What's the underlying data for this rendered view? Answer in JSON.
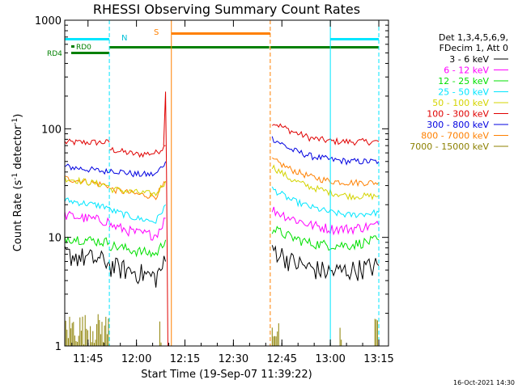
{
  "chart_data": {
    "type": "line",
    "title": "RHESSI Observing Summary Count Rates",
    "xlabel": "Start Time (19-Sep-07 11:39:22)",
    "ylabel_main": "Count Rate (s",
    "ylabel_sup1": "-1",
    "ylabel_mid": " detector",
    "ylabel_sup2": "-1",
    "ylabel_end": ")",
    "x_range_minutes": [
      11.63,
      13.3
    ],
    "y_scale": "log",
    "ylim": [
      1,
      1000
    ],
    "x_ticks": [
      {
        "t": 11.75,
        "label": "11:45"
      },
      {
        "t": 12.0,
        "label": "12:00"
      },
      {
        "t": 12.25,
        "label": "12:15"
      },
      {
        "t": 12.5,
        "label": "12:30"
      },
      {
        "t": 12.75,
        "label": "12:45"
      },
      {
        "t": 13.0,
        "label": "13:00"
      },
      {
        "t": 13.25,
        "label": "13:15"
      }
    ],
    "y_ticks": [
      {
        "v": 1,
        "label": "1"
      },
      {
        "v": 10,
        "label": "10"
      },
      {
        "v": 100,
        "label": "100"
      },
      {
        "v": 1000,
        "label": "1000"
      }
    ],
    "legend": {
      "header1": "Det 1,3,4,5,6,9,",
      "header2": "FDecim 1, Att 0",
      "entries": [
        {
          "label": "3 - 6 keV",
          "color": "#000000"
        },
        {
          "label": "6 - 12 keV",
          "color": "#ff00ff"
        },
        {
          "label": "12 - 25 keV",
          "color": "#00e000"
        },
        {
          "label": "25 - 50 keV",
          "color": "#00e6ff"
        },
        {
          "label": "50 - 100 keV",
          "color": "#d4d400"
        },
        {
          "label": "100 - 300 keV",
          "color": "#e00000"
        },
        {
          "label": "300 - 800 keV",
          "color": "#0000e0"
        },
        {
          "label": "800 - 7000 keV",
          "color": "#ff8000"
        },
        {
          "label": "7000 - 15000 keV",
          "color": "#8c8000"
        }
      ]
    },
    "flags": {
      "rd0_label": "RD0",
      "rd4_label": "RD4",
      "n_label": "N",
      "s_label": "S",
      "night_color": "#00e6ff",
      "saa_color": "#ff8000",
      "rd_color": "#008000",
      "night_intervals": [
        [
          11.63,
          11.86
        ],
        [
          13.0,
          13.25
        ]
      ],
      "saa_interval": [
        12.18,
        12.69
      ],
      "night_boundaries": [
        11.63,
        11.86,
        13.0,
        13.25
      ],
      "saa_boundaries": [
        12.18,
        12.69
      ]
    },
    "series": [
      {
        "color": "#e00000",
        "segments": [
          [
            [
              11.63,
              75
            ],
            [
              11.86,
              75
            ]
          ],
          [
            [
              11.86,
              65
            ],
            [
              12.0,
              58
            ],
            [
              12.1,
              60
            ],
            [
              12.15,
              70
            ]
          ],
          [
            [
              12.7,
              115
            ],
            [
              12.8,
              95
            ],
            [
              12.9,
              82
            ],
            [
              13.0,
              77
            ],
            [
              13.1,
              76
            ],
            [
              13.25,
              76
            ]
          ]
        ]
      },
      {
        "color": "#0000e0",
        "segments": [
          [
            [
              11.63,
              45
            ],
            [
              11.86,
              40
            ]
          ],
          [
            [
              11.86,
              42
            ],
            [
              12.0,
              38
            ],
            [
              12.1,
              38
            ],
            [
              12.15,
              50
            ]
          ],
          [
            [
              12.7,
              82
            ],
            [
              12.8,
              64
            ],
            [
              12.9,
              56
            ],
            [
              13.0,
              52
            ],
            [
              13.1,
              50
            ],
            [
              13.25,
              50
            ]
          ]
        ]
      },
      {
        "color": "#ff8000",
        "segments": [
          [
            [
              11.63,
              35
            ],
            [
              11.86,
              30
            ]
          ],
          [
            [
              11.86,
              28
            ],
            [
              12.0,
              25
            ],
            [
              12.1,
              24
            ],
            [
              12.15,
              32
            ]
          ],
          [
            [
              12.7,
              52
            ],
            [
              12.8,
              42
            ],
            [
              12.9,
              36
            ],
            [
              13.0,
              33
            ],
            [
              13.1,
              32
            ],
            [
              13.25,
              32
            ]
          ]
        ]
      },
      {
        "color": "#d4d400",
        "segments": [
          [
            [
              11.63,
              35
            ],
            [
              11.86,
              30
            ]
          ],
          [
            [
              11.86,
              28
            ],
            [
              12.0,
              26
            ],
            [
              12.1,
              25
            ],
            [
              12.15,
              33
            ]
          ],
          [
            [
              12.7,
              45
            ],
            [
              12.8,
              34
            ],
            [
              12.9,
              29
            ],
            [
              13.0,
              26
            ],
            [
              13.1,
              24
            ],
            [
              13.25,
              24
            ]
          ]
        ]
      },
      {
        "color": "#00e6ff",
        "segments": [
          [
            [
              11.63,
              22
            ],
            [
              11.86,
              19
            ]
          ],
          [
            [
              11.86,
              18
            ],
            [
              12.0,
              15
            ],
            [
              12.1,
              14
            ],
            [
              12.15,
              20
            ]
          ],
          [
            [
              12.7,
              28
            ],
            [
              12.8,
              22
            ],
            [
              12.9,
              19
            ],
            [
              13.0,
              17
            ],
            [
              13.1,
              16
            ],
            [
              13.25,
              17
            ]
          ]
        ]
      },
      {
        "color": "#ff00ff",
        "segments": [
          [
            [
              11.63,
              16
            ],
            [
              11.86,
              14
            ]
          ],
          [
            [
              11.86,
              13
            ],
            [
              12.0,
              11
            ],
            [
              12.1,
              10.5
            ],
            [
              12.15,
              15
            ]
          ],
          [
            [
              12.7,
              18
            ],
            [
              12.8,
              15
            ],
            [
              12.9,
              13
            ],
            [
              13.0,
              12
            ],
            [
              13.1,
              12
            ],
            [
              13.25,
              13
            ]
          ]
        ]
      },
      {
        "color": "#00e000",
        "segments": [
          [
            [
              11.63,
              10
            ],
            [
              11.86,
              9
            ]
          ],
          [
            [
              11.86,
              8.5
            ],
            [
              12.0,
              7.5
            ],
            [
              12.1,
              7.0
            ],
            [
              12.15,
              9.5
            ]
          ],
          [
            [
              12.7,
              12
            ],
            [
              12.8,
              10
            ],
            [
              12.9,
              8.8
            ],
            [
              13.0,
              8.5
            ],
            [
              13.1,
              8.5
            ],
            [
              13.25,
              9.5
            ]
          ]
        ]
      },
      {
        "color": "#000000",
        "segments": [
          [
            [
              11.63,
              7
            ],
            [
              11.86,
              6
            ]
          ],
          [
            [
              11.86,
              5.5
            ],
            [
              12.0,
              4.8
            ],
            [
              12.1,
              4.3
            ],
            [
              12.15,
              6
            ]
          ],
          [
            [
              12.7,
              8
            ],
            [
              12.8,
              6
            ],
            [
              12.9,
              5.2
            ],
            [
              13.0,
              4.8
            ],
            [
              13.1,
              5.0
            ],
            [
              13.25,
              5.5
            ]
          ]
        ]
      }
    ],
    "spike": {
      "color": "#e00000",
      "t": 12.15,
      "value": 220
    },
    "footer": "16-Oct-2021 14:30"
  }
}
